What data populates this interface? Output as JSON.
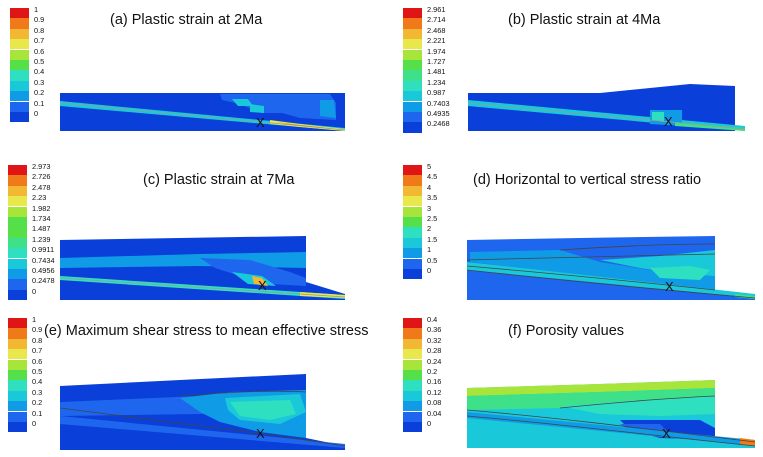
{
  "legend_colors": [
    "#0a3fd9",
    "#1f66ee",
    "#0f9be6",
    "#19c9d9",
    "#2fe0c0",
    "#3fe08a",
    "#55e04a",
    "#a8e53b",
    "#e8e84d",
    "#f2b833",
    "#f07a1a",
    "#e01515"
  ],
  "panels": [
    {
      "title": "(a) Plastic strain at 2Ma",
      "ticks": [
        "1",
        "0.9",
        "0.8",
        "0.7",
        "0.6",
        "0.5",
        "0.4",
        "0.3",
        "0.2",
        "0.1",
        "0"
      ],
      "marker": "X"
    },
    {
      "title": "(b) Plastic strain at 4Ma",
      "ticks": [
        "2.961",
        "2.714",
        "2.468",
        "2.221",
        "1.974",
        "1.727",
        "1.481",
        "1.234",
        "0.987",
        "0.7403",
        "0.4935",
        "0.2468"
      ],
      "marker": "X"
    },
    {
      "title": "(c) Plastic strain at 7Ma",
      "ticks": [
        "2.973",
        "2.726",
        "2.478",
        "2.23",
        "1.982",
        "1.734",
        "1.487",
        "1.239",
        "0.9911",
        "0.7434",
        "0.4956",
        "0.2478",
        "0"
      ],
      "marker": "X"
    },
    {
      "title": "(d) Horizontal to vertical stress ratio",
      "ticks": [
        "5",
        "4.5",
        "4",
        "3.5",
        "3",
        "2.5",
        "2",
        "1.5",
        "1",
        "0.5",
        "0"
      ],
      "marker": "X"
    },
    {
      "title": "(e) Maximum shear stress to mean effective  stress",
      "ticks": [
        "1",
        "0.9",
        "0.8",
        "0.7",
        "0.6",
        "0.5",
        "0.4",
        "0.3",
        "0.2",
        "0.1",
        "0"
      ],
      "marker": "X"
    },
    {
      "title": "(f) Porosity values",
      "ticks": [
        "0.4",
        "0.36",
        "0.32",
        "0.28",
        "0.24",
        "0.2",
        "0.16",
        "0.12",
        "0.08",
        "0.04",
        "0"
      ],
      "marker": "X"
    }
  ]
}
